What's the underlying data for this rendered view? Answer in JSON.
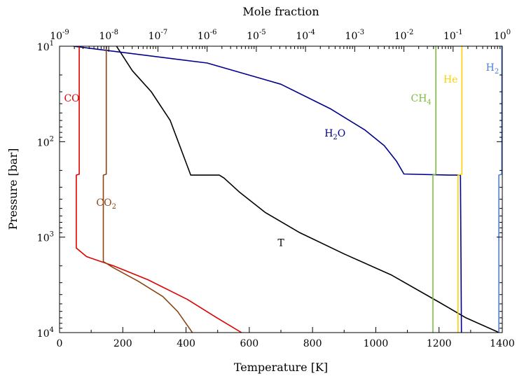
{
  "chart_data": {
    "type": "line",
    "xlabel": "Temperature [K]",
    "x2label": "Mole fraction",
    "ylabel": "Pressure [bar]",
    "xlim": [
      0,
      1400
    ],
    "x2lim_log10": [
      -9,
      0
    ],
    "ylim_log10": [
      1,
      4
    ],
    "y_inverted": true,
    "y_scale": "log",
    "x2_scale": "log",
    "grid": false,
    "x_ticks": [
      "0",
      "200",
      "400",
      "600",
      "800",
      "1000",
      "1200",
      "1400"
    ],
    "x2_ticks": [
      {
        "base": "10",
        "exp": "-9"
      },
      {
        "base": "10",
        "exp": "-8"
      },
      {
        "base": "10",
        "exp": "-7"
      },
      {
        "base": "10",
        "exp": "-6"
      },
      {
        "base": "10",
        "exp": "-5"
      },
      {
        "base": "10",
        "exp": "-4"
      },
      {
        "base": "10",
        "exp": "-3"
      },
      {
        "base": "10",
        "exp": "-2"
      },
      {
        "base": "10",
        "exp": "-1"
      },
      {
        "base": "10",
        "exp": "0"
      }
    ],
    "y_ticks": [
      {
        "base": "10",
        "exp": "1"
      },
      {
        "base": "10",
        "exp": "2"
      },
      {
        "base": "10",
        "exp": "3"
      },
      {
        "base": "10",
        "exp": "4"
      }
    ],
    "series": [
      {
        "name": "T",
        "label": {
          "main": "T",
          "sub": ""
        },
        "color": "#000000",
        "axis": "temperature",
        "label_at": [
          700,
          1240
        ],
        "points": [
          [
            180,
            10
          ],
          [
            230,
            18
          ],
          [
            290,
            30
          ],
          [
            350,
            60
          ],
          [
            415,
            224
          ],
          [
            505,
            224
          ],
          [
            520,
            240
          ],
          [
            570,
            340
          ],
          [
            650,
            550
          ],
          [
            760,
            900
          ],
          [
            900,
            1500
          ],
          [
            1050,
            2500
          ],
          [
            1200,
            4800
          ],
          [
            1285,
            7000
          ],
          [
            1390,
            10000
          ]
        ]
      },
      {
        "name": "H2O",
        "label": {
          "main": "H",
          "sub": "2",
          "tail": "O"
        },
        "color": "#00008b",
        "axis": "mole_fraction",
        "label_at": [
          -3.4,
          88
        ],
        "points": [
          [
            -8.72,
            10
          ],
          [
            -6.0,
            15
          ],
          [
            -4.5,
            25
          ],
          [
            -3.5,
            45
          ],
          [
            -2.8,
            75
          ],
          [
            -2.4,
            110
          ],
          [
            -2.15,
            160
          ],
          [
            -2.0,
            218
          ],
          [
            -1.05,
            224
          ],
          [
            -0.85,
            224
          ],
          [
            -0.83,
            10000
          ]
        ]
      },
      {
        "name": "CO",
        "label": {
          "main": "CO",
          "sub": ""
        },
        "color": "#e00000",
        "axis": "mole_fraction",
        "label_at": [
          -8.75,
          38
        ],
        "points": [
          [
            -8.6,
            10
          ],
          [
            -8.6,
            219
          ],
          [
            -8.66,
            224
          ],
          [
            -8.66,
            1300
          ],
          [
            -8.45,
            1600
          ],
          [
            -7.9,
            2000
          ],
          [
            -7.2,
            2800
          ],
          [
            -6.4,
            4500
          ],
          [
            -5.8,
            7000
          ],
          [
            -5.3,
            10000
          ]
        ]
      },
      {
        "name": "CO2",
        "label": {
          "main": "CO",
          "sub": "2",
          "tail": ""
        },
        "color": "#8b4513",
        "axis": "mole_fraction",
        "label_at": [
          -8.05,
          470
        ],
        "points": [
          [
            -8.05,
            10
          ],
          [
            -8.05,
            219
          ],
          [
            -8.11,
            224
          ],
          [
            -8.11,
            1800
          ],
          [
            -7.9,
            2100
          ],
          [
            -7.4,
            2900
          ],
          [
            -6.9,
            4200
          ],
          [
            -6.6,
            6000
          ],
          [
            -6.3,
            10000
          ]
        ]
      },
      {
        "name": "CH4",
        "label": {
          "main": "CH",
          "sub": "4",
          "tail": ""
        },
        "color": "#7cbf3f",
        "axis": "mole_fraction",
        "label_at": [
          -1.65,
          38
        ],
        "points": [
          [
            -1.35,
            10
          ],
          [
            -1.35,
            219
          ],
          [
            -1.41,
            224
          ],
          [
            -1.41,
            10000
          ]
        ]
      },
      {
        "name": "He",
        "label": {
          "main": "He",
          "sub": ""
        },
        "color": "#ffd000",
        "axis": "mole_fraction",
        "label_at": [
          -1.05,
          24
        ],
        "points": [
          [
            -0.82,
            10
          ],
          [
            -0.82,
            219
          ],
          [
            -0.9,
            224
          ],
          [
            -0.9,
            10000
          ]
        ]
      },
      {
        "name": "H2",
        "label": {
          "main": "H",
          "sub": "2",
          "tail": ""
        },
        "color": "#4a7fe0",
        "axis": "mole_fraction",
        "label_at": [
          -0.2,
          18
        ],
        "points": [
          [
            -0.01,
            10
          ],
          [
            -0.01,
            219
          ],
          [
            -0.07,
            224
          ],
          [
            -0.07,
            10000
          ]
        ]
      }
    ]
  }
}
